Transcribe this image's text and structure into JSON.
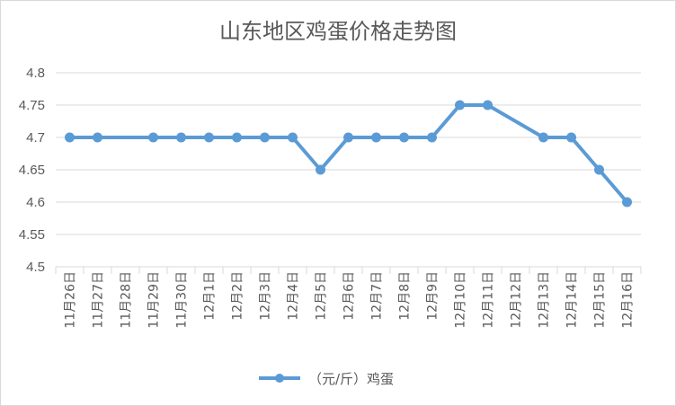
{
  "chart_data": {
    "type": "line",
    "title": "山东地区鸡蛋价格走势图",
    "xlabel": "",
    "ylabel": "",
    "categories": [
      "11月26日",
      "11月27日",
      "11月28日",
      "11月29日",
      "11月30日",
      "12月1日",
      "12月2日",
      "12月3日",
      "12月4日",
      "12月5日",
      "12月6日",
      "12月7日",
      "12月8日",
      "12月9日",
      "12月10日",
      "12月11日",
      "12月12日",
      "12月13日",
      "12月14日",
      "12月15日",
      "12月16日"
    ],
    "yticks": [
      "4.5",
      "4.55",
      "4.6",
      "4.65",
      "4.7",
      "4.75",
      "4.8"
    ],
    "ylim": [
      4.5,
      4.8
    ],
    "series": [
      {
        "name": "（元/斤）鸡蛋",
        "values": [
          4.7,
          4.7,
          null,
          4.7,
          4.7,
          4.7,
          4.7,
          4.7,
          4.7,
          4.65,
          4.7,
          4.7,
          4.7,
          4.7,
          4.75,
          4.75,
          null,
          4.7,
          4.7,
          4.65,
          4.6
        ]
      }
    ],
    "grid": true,
    "legend": "bottom",
    "colors": {
      "line": "#5b9bd5",
      "grid": "#d9d9d9",
      "text": "#595959"
    }
  }
}
